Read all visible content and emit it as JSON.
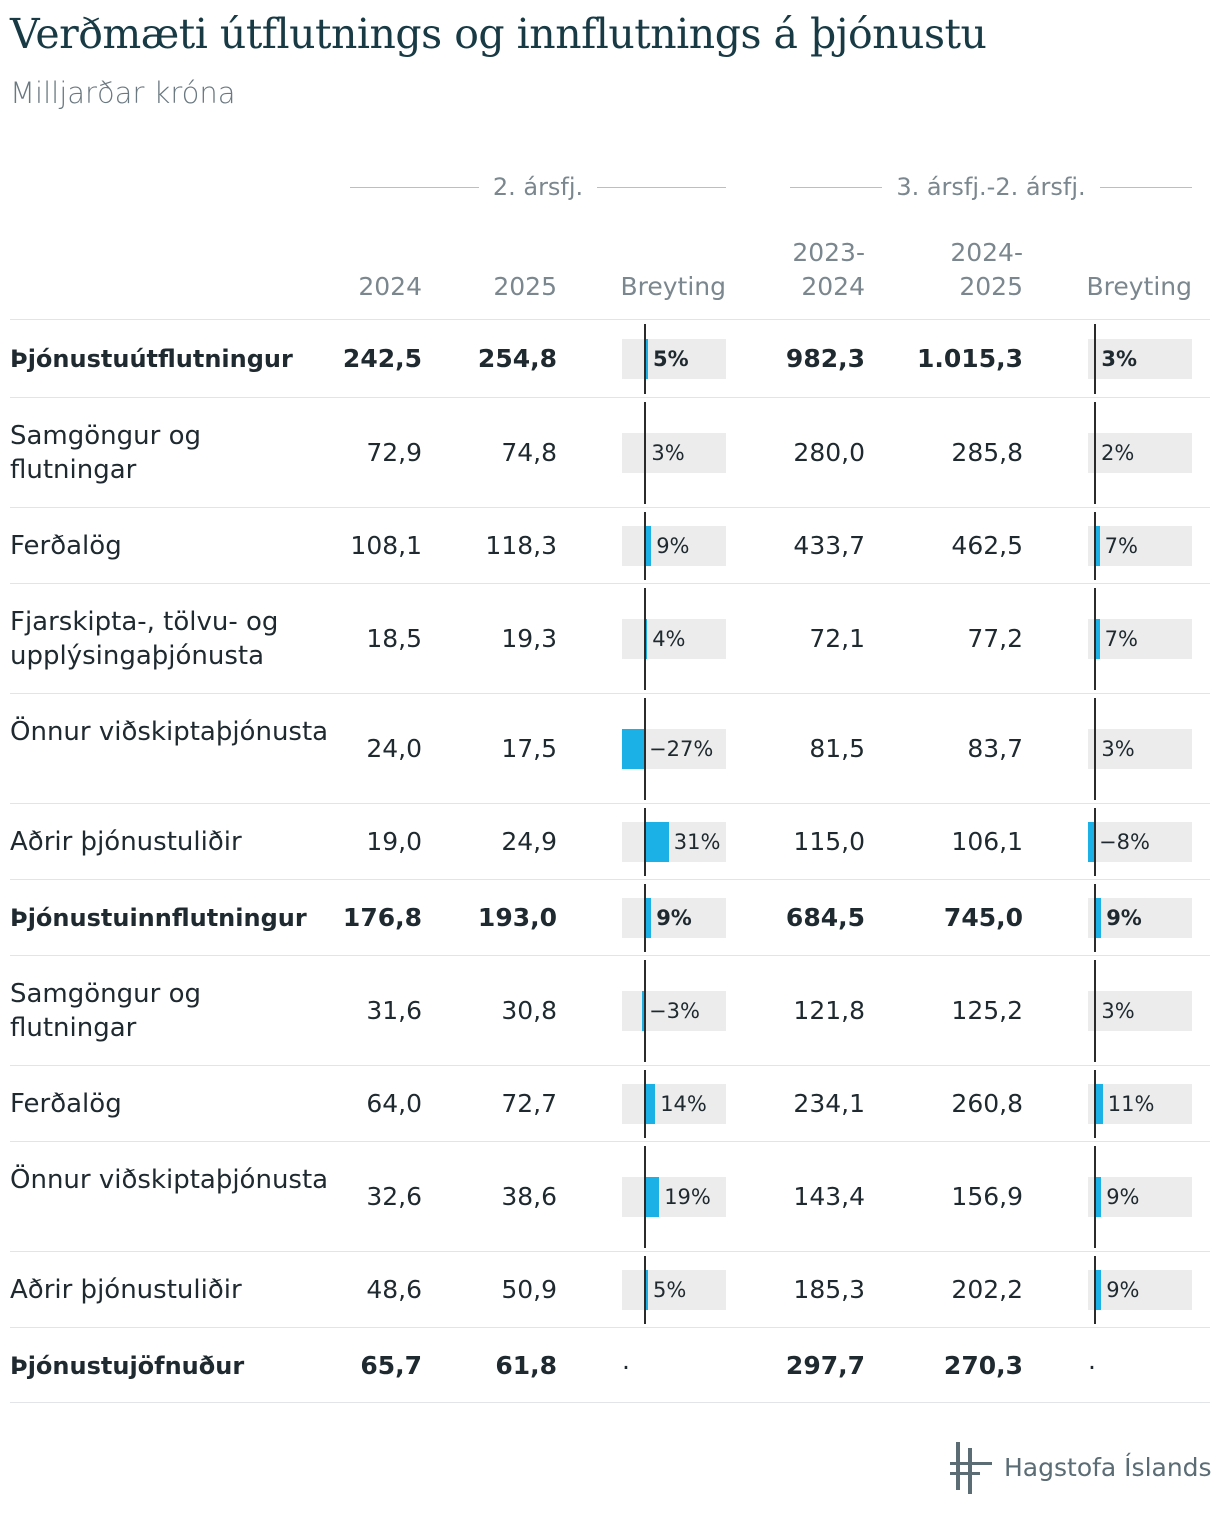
{
  "title": "Verðmæti útflutnings og innflutnings á þjónustu",
  "subtitle": "Milljarðar króna",
  "groups": {
    "quarter": "2. ársfj.",
    "period": "3. ársfj.-2. ársfj."
  },
  "columns": {
    "c1": "2024",
    "c2": "2025",
    "c3": "Breyting",
    "c4_line1": "2023-",
    "c4_line2": "2024",
    "c5_line1": "2024-",
    "c5_line2": "2025",
    "c6": "Breyting"
  },
  "brand": "Hagstofa Íslands",
  "colors": {
    "bar": "#1bb1e7",
    "bar_bg": "#ececec",
    "title": "#173a45"
  },
  "chart_data": {
    "type": "table",
    "rows": [
      {
        "label": "Þjónustuútflutningur",
        "bold": true,
        "v2024": "242,5",
        "v2025": "254,8",
        "chg_q": 5,
        "chg_q_label": "5%",
        "v2324": "982,3",
        "v2425": "1.015,3",
        "chg_p": 3,
        "chg_p_label": "3%"
      },
      {
        "label": "Samgöngur og flutningar",
        "bold": false,
        "v2024": "72,9",
        "v2025": "74,8",
        "chg_q": 3,
        "chg_q_label": "3%",
        "v2324": "280,0",
        "v2425": "285,8",
        "chg_p": 2,
        "chg_p_label": "2%"
      },
      {
        "label": "Ferðalög",
        "bold": false,
        "v2024": "108,1",
        "v2025": "118,3",
        "chg_q": 9,
        "chg_q_label": "9%",
        "v2324": "433,7",
        "v2425": "462,5",
        "chg_p": 7,
        "chg_p_label": "7%"
      },
      {
        "label": "Fjarskipta-, tölvu- og upplýsingaþjónusta",
        "bold": false,
        "v2024": "18,5",
        "v2025": "19,3",
        "chg_q": 4,
        "chg_q_label": "4%",
        "v2324": "72,1",
        "v2425": "77,2",
        "chg_p": 7,
        "chg_p_label": "7%"
      },
      {
        "label": "Önnur viðskiptaþjónusta",
        "bold": false,
        "v2024": "24,0",
        "v2025": "17,5",
        "chg_q": -27,
        "chg_q_label": "−27%",
        "v2324": "81,5",
        "v2425": "83,7",
        "chg_p": 3,
        "chg_p_label": "3%"
      },
      {
        "label": "Aðrir þjónustuliðir",
        "bold": false,
        "v2024": "19,0",
        "v2025": "24,9",
        "chg_q": 31,
        "chg_q_label": "31%",
        "v2324": "115,0",
        "v2425": "106,1",
        "chg_p": -8,
        "chg_p_label": "−8%"
      },
      {
        "label": "Þjónustuinnflutningur",
        "bold": true,
        "v2024": "176,8",
        "v2025": "193,0",
        "chg_q": 9,
        "chg_q_label": "9%",
        "v2324": "684,5",
        "v2425": "745,0",
        "chg_p": 9,
        "chg_p_label": "9%"
      },
      {
        "label": "Samgöngur og flutningar",
        "bold": false,
        "v2024": "31,6",
        "v2025": "30,8",
        "chg_q": -3,
        "chg_q_label": "−3%",
        "v2324": "121,8",
        "v2425": "125,2",
        "chg_p": 3,
        "chg_p_label": "3%"
      },
      {
        "label": "Ferðalög",
        "bold": false,
        "v2024": "64,0",
        "v2025": "72,7",
        "chg_q": 14,
        "chg_q_label": "14%",
        "v2324": "234,1",
        "v2425": "260,8",
        "chg_p": 11,
        "chg_p_label": "11%"
      },
      {
        "label": "Önnur viðskiptaþjónusta",
        "bold": false,
        "v2024": "32,6",
        "v2025": "38,6",
        "chg_q": 19,
        "chg_q_label": "19%",
        "v2324": "143,4",
        "v2425": "156,9",
        "chg_p": 9,
        "chg_p_label": "9%"
      },
      {
        "label": "Aðrir þjónustuliðir",
        "bold": false,
        "v2024": "48,6",
        "v2025": "50,9",
        "chg_q": 5,
        "chg_q_label": "5%",
        "v2324": "185,3",
        "v2425": "202,2",
        "chg_p": 9,
        "chg_p_label": "9%"
      },
      {
        "label": "Þjónustujöfnuður",
        "bold": true,
        "v2024": "65,7",
        "v2025": "61,8",
        "chg_q": null,
        "chg_q_label": ".",
        "v2324": "297,7",
        "v2425": "270,3",
        "chg_p": null,
        "chg_p_label": "."
      }
    ]
  }
}
